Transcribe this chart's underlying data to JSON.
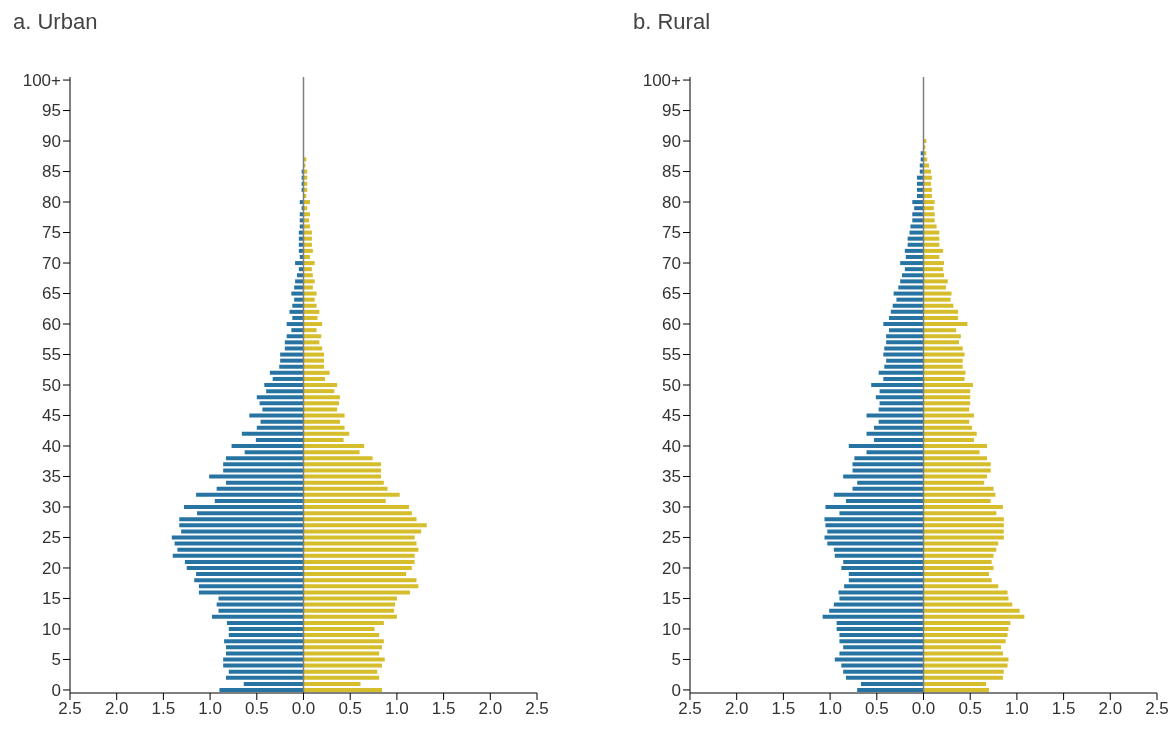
{
  "chart_data": [
    {
      "type": "bar",
      "title": "a. Urban",
      "orientation": "horizontal",
      "stacked": true,
      "categories": [
        "100+",
        null,
        null,
        null,
        null,
        "95",
        null,
        null,
        null,
        null,
        "90",
        null,
        null,
        null,
        null,
        "85",
        null,
        null,
        null,
        null,
        "80",
        null,
        null,
        null,
        null,
        "75",
        null,
        null,
        null,
        null,
        "70",
        null,
        null,
        null,
        null,
        "65",
        null,
        null,
        null,
        null,
        "60",
        null,
        null,
        null,
        null,
        "55",
        null,
        null,
        null,
        null,
        "50",
        null,
        null,
        null,
        null,
        "45",
        null,
        null,
        null,
        null,
        "40",
        null,
        null,
        null,
        null,
        "35",
        null,
        null,
        null,
        null,
        "30",
        null,
        null,
        null,
        null,
        "25",
        null,
        null,
        null,
        null,
        "20",
        null,
        null,
        null,
        null,
        "15",
        null,
        null,
        null,
        null,
        "10",
        null,
        null,
        null,
        null,
        "5",
        null,
        null,
        null,
        null,
        "0"
      ],
      "series": [
        {
          "color": "#2774a2",
          "values": [
            0,
            0,
            0,
            0,
            0,
            0,
            0,
            0,
            0,
            0,
            0,
            0,
            0,
            0,
            0,
            -0.02,
            -0.02,
            -0.02,
            -0.02,
            0,
            -0.04,
            -0.02,
            -0.04,
            -0.04,
            -0.04,
            -0.05,
            -0.05,
            -0.05,
            -0.05,
            -0.04,
            -0.09,
            -0.05,
            -0.07,
            -0.09,
            -0.1,
            -0.13,
            -0.1,
            -0.12,
            -0.15,
            -0.12,
            -0.18,
            -0.13,
            -0.18,
            -0.2,
            -0.2,
            -0.25,
            -0.25,
            -0.26,
            -0.36,
            -0.33,
            -0.42,
            -0.4,
            -0.5,
            -0.47,
            -0.44,
            -0.58,
            -0.46,
            -0.5,
            -0.66,
            -0.51,
            -0.77,
            -0.63,
            -0.83,
            -0.86,
            -0.86,
            -1.01,
            -0.83,
            -0.93,
            -1.15,
            -0.95,
            -1.28,
            -1.14,
            -1.33,
            -1.33,
            -1.31,
            -1.41,
            -1.38,
            -1.35,
            -1.4,
            -1.27,
            -1.25,
            -1.15,
            -1.17,
            -1.12,
            -1.12,
            -0.91,
            -0.93,
            -0.91,
            -0.98,
            -0.82,
            -0.8,
            -0.8,
            -0.85,
            -0.83,
            -0.83,
            -0.86,
            -0.86,
            -0.8,
            -0.83,
            -0.64,
            -0.9
          ]
        },
        {
          "color": "#d6bd2b",
          "values": [
            0,
            0,
            0,
            0,
            0,
            0,
            0,
            0,
            0,
            0,
            0,
            0,
            0,
            0.03,
            0.02,
            0.04,
            0.04,
            0.04,
            0.04,
            0.03,
            0.07,
            0.04,
            0.07,
            0.06,
            0.07,
            0.09,
            0.09,
            0.09,
            0.1,
            0.07,
            0.12,
            0.09,
            0.1,
            0.12,
            0.1,
            0.14,
            0.12,
            0.14,
            0.17,
            0.15,
            0.2,
            0.14,
            0.19,
            0.17,
            0.2,
            0.22,
            0.22,
            0.22,
            0.28,
            0.23,
            0.36,
            0.33,
            0.39,
            0.38,
            0.36,
            0.44,
            0.39,
            0.44,
            0.49,
            0.43,
            0.65,
            0.6,
            0.74,
            0.83,
            0.83,
            0.83,
            0.86,
            0.9,
            1.03,
            0.88,
            1.13,
            1.16,
            1.21,
            1.32,
            1.26,
            1.19,
            1.21,
            1.23,
            1.19,
            1.19,
            1.16,
            1.1,
            1.21,
            1.23,
            1.14,
            1.0,
            0.98,
            0.97,
            1.0,
            0.86,
            0.76,
            0.81,
            0.86,
            0.84,
            0.81,
            0.87,
            0.84,
            0.79,
            0.81,
            0.61,
            0.84
          ]
        }
      ],
      "xlim": [
        -2.5,
        2.5
      ],
      "xticks": [
        {
          "value": -2.5,
          "label": "2.5"
        },
        {
          "value": -2,
          "label": "2.0"
        },
        {
          "value": -1.5,
          "label": "1.5"
        },
        {
          "value": -1,
          "label": "1.0"
        },
        {
          "value": -0.5,
          "label": "0.5"
        },
        {
          "value": 0,
          "label": "0.0"
        },
        {
          "value": 0.5,
          "label": "0.5"
        },
        {
          "value": 1,
          "label": "1.0"
        },
        {
          "value": 1.5,
          "label": "1.5"
        },
        {
          "value": 2,
          "label": "2.0"
        },
        {
          "value": 2.5,
          "label": "2.5"
        }
      ],
      "ref_lines": [
        {
          "axis": "x",
          "value": 0,
          "color": "#808080"
        }
      ]
    },
    {
      "type": "bar",
      "title": "b. Rural",
      "orientation": "horizontal",
      "stacked": true,
      "categories": [
        "100+",
        null,
        null,
        null,
        null,
        "95",
        null,
        null,
        null,
        null,
        "90",
        null,
        null,
        null,
        null,
        "85",
        null,
        null,
        null,
        null,
        "80",
        null,
        null,
        null,
        null,
        "75",
        null,
        null,
        null,
        null,
        "70",
        null,
        null,
        null,
        null,
        "65",
        null,
        null,
        null,
        null,
        "60",
        null,
        null,
        null,
        null,
        "55",
        null,
        null,
        null,
        null,
        "50",
        null,
        null,
        null,
        null,
        "45",
        null,
        null,
        null,
        null,
        "40",
        null,
        null,
        null,
        null,
        "35",
        null,
        null,
        null,
        null,
        "30",
        null,
        null,
        null,
        null,
        "25",
        null,
        null,
        null,
        null,
        "20",
        null,
        null,
        null,
        null,
        "15",
        null,
        null,
        null,
        null,
        "10",
        null,
        null,
        null,
        null,
        "5",
        null,
        null,
        null,
        null,
        "0"
      ],
      "series": [
        {
          "color": "#2774a2",
          "values": [
            0,
            0,
            0,
            0,
            0,
            0,
            0,
            0,
            0,
            0,
            0,
            0,
            -0.03,
            -0.03,
            -0.04,
            -0.04,
            -0.07,
            -0.07,
            -0.07,
            -0.07,
            -0.12,
            -0.1,
            -0.12,
            -0.12,
            -0.14,
            -0.15,
            -0.17,
            -0.17,
            -0.2,
            -0.19,
            -0.25,
            -0.2,
            -0.23,
            -0.25,
            -0.27,
            -0.32,
            -0.29,
            -0.33,
            -0.35,
            -0.37,
            -0.43,
            -0.37,
            -0.4,
            -0.4,
            -0.42,
            -0.43,
            -0.4,
            -0.42,
            -0.48,
            -0.43,
            -0.56,
            -0.47,
            -0.51,
            -0.47,
            -0.48,
            -0.61,
            -0.48,
            -0.53,
            -0.61,
            -0.53,
            -0.8,
            -0.61,
            -0.74,
            -0.76,
            -0.76,
            -0.86,
            -0.71,
            -0.76,
            -0.96,
            -0.83,
            -1.05,
            -0.9,
            -1.06,
            -1.05,
            -1.03,
            -1.06,
            -1.03,
            -0.96,
            -0.95,
            -0.86,
            -0.88,
            -0.8,
            -0.8,
            -0.85,
            -0.91,
            -0.9,
            -0.96,
            -1.01,
            -1.08,
            -0.93,
            -0.93,
            -0.9,
            -0.9,
            -0.86,
            -0.9,
            -0.95,
            -0.88,
            -0.86,
            -0.83,
            -0.67,
            -0.71
          ]
        },
        {
          "color": "#d6bd2b",
          "values": [
            0,
            0,
            0,
            0,
            0,
            0,
            0,
            0,
            0,
            0,
            0.03,
            0.02,
            0.03,
            0.04,
            0.06,
            0.08,
            0.09,
            0.08,
            0.09,
            0.09,
            0.12,
            0.11,
            0.12,
            0.12,
            0.14,
            0.17,
            0.17,
            0.17,
            0.21,
            0.17,
            0.22,
            0.21,
            0.22,
            0.26,
            0.24,
            0.3,
            0.29,
            0.32,
            0.37,
            0.37,
            0.47,
            0.35,
            0.4,
            0.38,
            0.42,
            0.44,
            0.42,
            0.42,
            0.45,
            0.44,
            0.53,
            0.5,
            0.5,
            0.5,
            0.49,
            0.54,
            0.49,
            0.52,
            0.57,
            0.54,
            0.68,
            0.6,
            0.68,
            0.72,
            0.72,
            0.68,
            0.65,
            0.75,
            0.77,
            0.72,
            0.85,
            0.78,
            0.86,
            0.86,
            0.86,
            0.86,
            0.8,
            0.78,
            0.75,
            0.73,
            0.75,
            0.7,
            0.73,
            0.8,
            0.9,
            0.91,
            0.95,
            1.03,
            1.08,
            0.93,
            0.91,
            0.9,
            0.88,
            0.83,
            0.85,
            0.91,
            0.9,
            0.86,
            0.85,
            0.67,
            0.7
          ]
        }
      ],
      "xlim": [
        -2.5,
        2.5
      ],
      "xticks": [
        {
          "value": -2.5,
          "label": "2.5"
        },
        {
          "value": -2,
          "label": "2.0"
        },
        {
          "value": -1.5,
          "label": "1.5"
        },
        {
          "value": -1,
          "label": "1.0"
        },
        {
          "value": -0.5,
          "label": "0.5"
        },
        {
          "value": 0,
          "label": "0.0"
        },
        {
          "value": 0.5,
          "label": "0.5"
        },
        {
          "value": 1,
          "label": "1.0"
        },
        {
          "value": 1.5,
          "label": "1.5"
        },
        {
          "value": 2,
          "label": "2.0"
        },
        {
          "value": 2.5,
          "label": "2.5"
        }
      ],
      "ref_lines": [
        {
          "axis": "x",
          "value": 0,
          "color": "#808080"
        }
      ]
    }
  ]
}
